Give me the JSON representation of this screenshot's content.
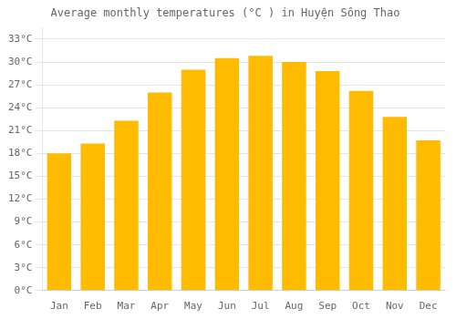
{
  "chart_data": {
    "type": "bar",
    "title": "Average monthly temperatures (°C ) in Huyện Sông Thao",
    "categories": [
      "Jan",
      "Feb",
      "Mar",
      "Apr",
      "May",
      "Jun",
      "Jul",
      "Aug",
      "Sep",
      "Oct",
      "Nov",
      "Dec"
    ],
    "values": [
      18.0,
      19.3,
      22.3,
      26.0,
      29.0,
      30.5,
      30.8,
      30.0,
      28.8,
      26.2,
      22.8,
      19.7
    ],
    "color": "#FFBB00",
    "ylim": [
      0,
      34.5
    ],
    "yticks": [
      {
        "value": 0,
        "label": "0°C"
      },
      {
        "value": 3,
        "label": "3°C"
      },
      {
        "value": 6,
        "label": "6°C"
      },
      {
        "value": 9,
        "label": "9°C"
      },
      {
        "value": 12,
        "label": "12°C"
      },
      {
        "value": 15,
        "label": "15°C"
      },
      {
        "value": 18,
        "label": "18°C"
      },
      {
        "value": 21,
        "label": "21°C"
      },
      {
        "value": 24,
        "label": "24°C"
      },
      {
        "value": 27,
        "label": "27°C"
      },
      {
        "value": 30,
        "label": "30°C"
      },
      {
        "value": 33,
        "label": "33°C"
      }
    ],
    "grid": true
  }
}
